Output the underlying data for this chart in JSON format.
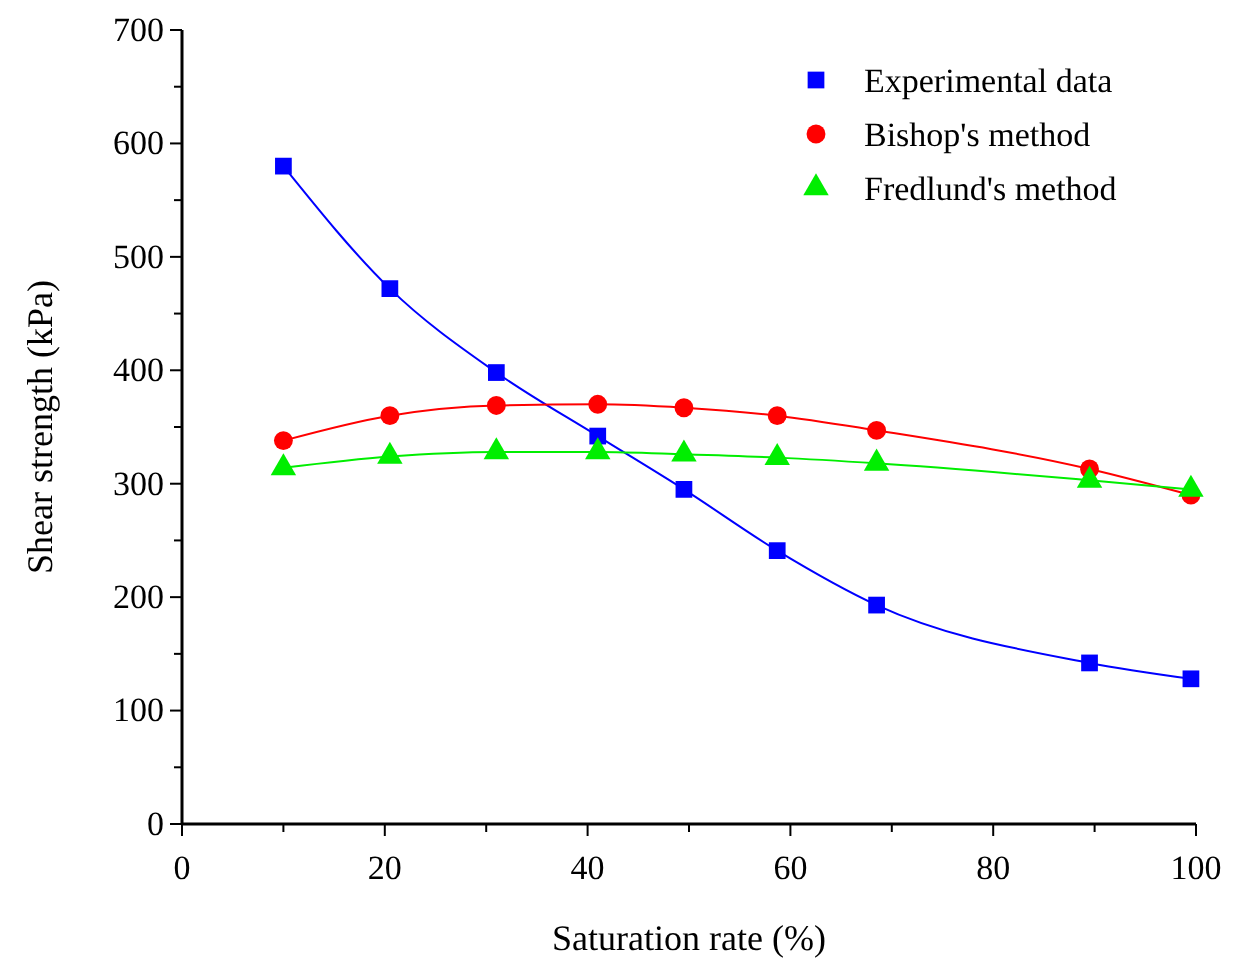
{
  "chart_data": {
    "type": "line",
    "xlabel": "Saturation rate (%)",
    "ylabel": "Shear strength (kPa)",
    "x": [
      10,
      20.5,
      31,
      41,
      49.5,
      58.7,
      68.5,
      89.5,
      99.5
    ],
    "series": [
      {
        "name": "Experimental data",
        "color": "#0000ff",
        "marker": "square",
        "values": [
          580,
          472,
          398,
          342,
          295,
          241,
          193,
          142,
          128
        ]
      },
      {
        "name": "Bishop's method",
        "color": "#ff0000",
        "marker": "circle",
        "values": [
          338,
          360,
          369,
          370,
          367,
          360,
          347,
          313,
          290
        ]
      },
      {
        "name": "Fredlund's method",
        "color": "#00ee00",
        "marker": "triangle",
        "values": [
          314,
          324,
          328,
          328,
          326,
          323,
          318,
          303,
          295
        ]
      }
    ],
    "xlim": [
      0,
      100
    ],
    "xticks": [
      0,
      {
        "value": 10,
        "label": null
      },
      20,
      {
        "value": 30,
        "label": null
      },
      40,
      {
        "value": 50,
        "label": null
      },
      60,
      {
        "value": 70,
        "label": null
      },
      80,
      {
        "value": 90,
        "label": null
      },
      100
    ],
    "ylim": [
      0,
      700
    ],
    "yticks": [
      0,
      {
        "value": 50,
        "label": null
      },
      100,
      {
        "value": 150,
        "label": null
      },
      200,
      {
        "value": 250,
        "label": null
      },
      300,
      {
        "value": 350,
        "label": null
      },
      400,
      {
        "value": 450,
        "label": null
      },
      500,
      {
        "value": 550,
        "label": null
      },
      600,
      {
        "value": 650,
        "label": null
      },
      700
    ],
    "legend": "top right",
    "grid": false
  }
}
